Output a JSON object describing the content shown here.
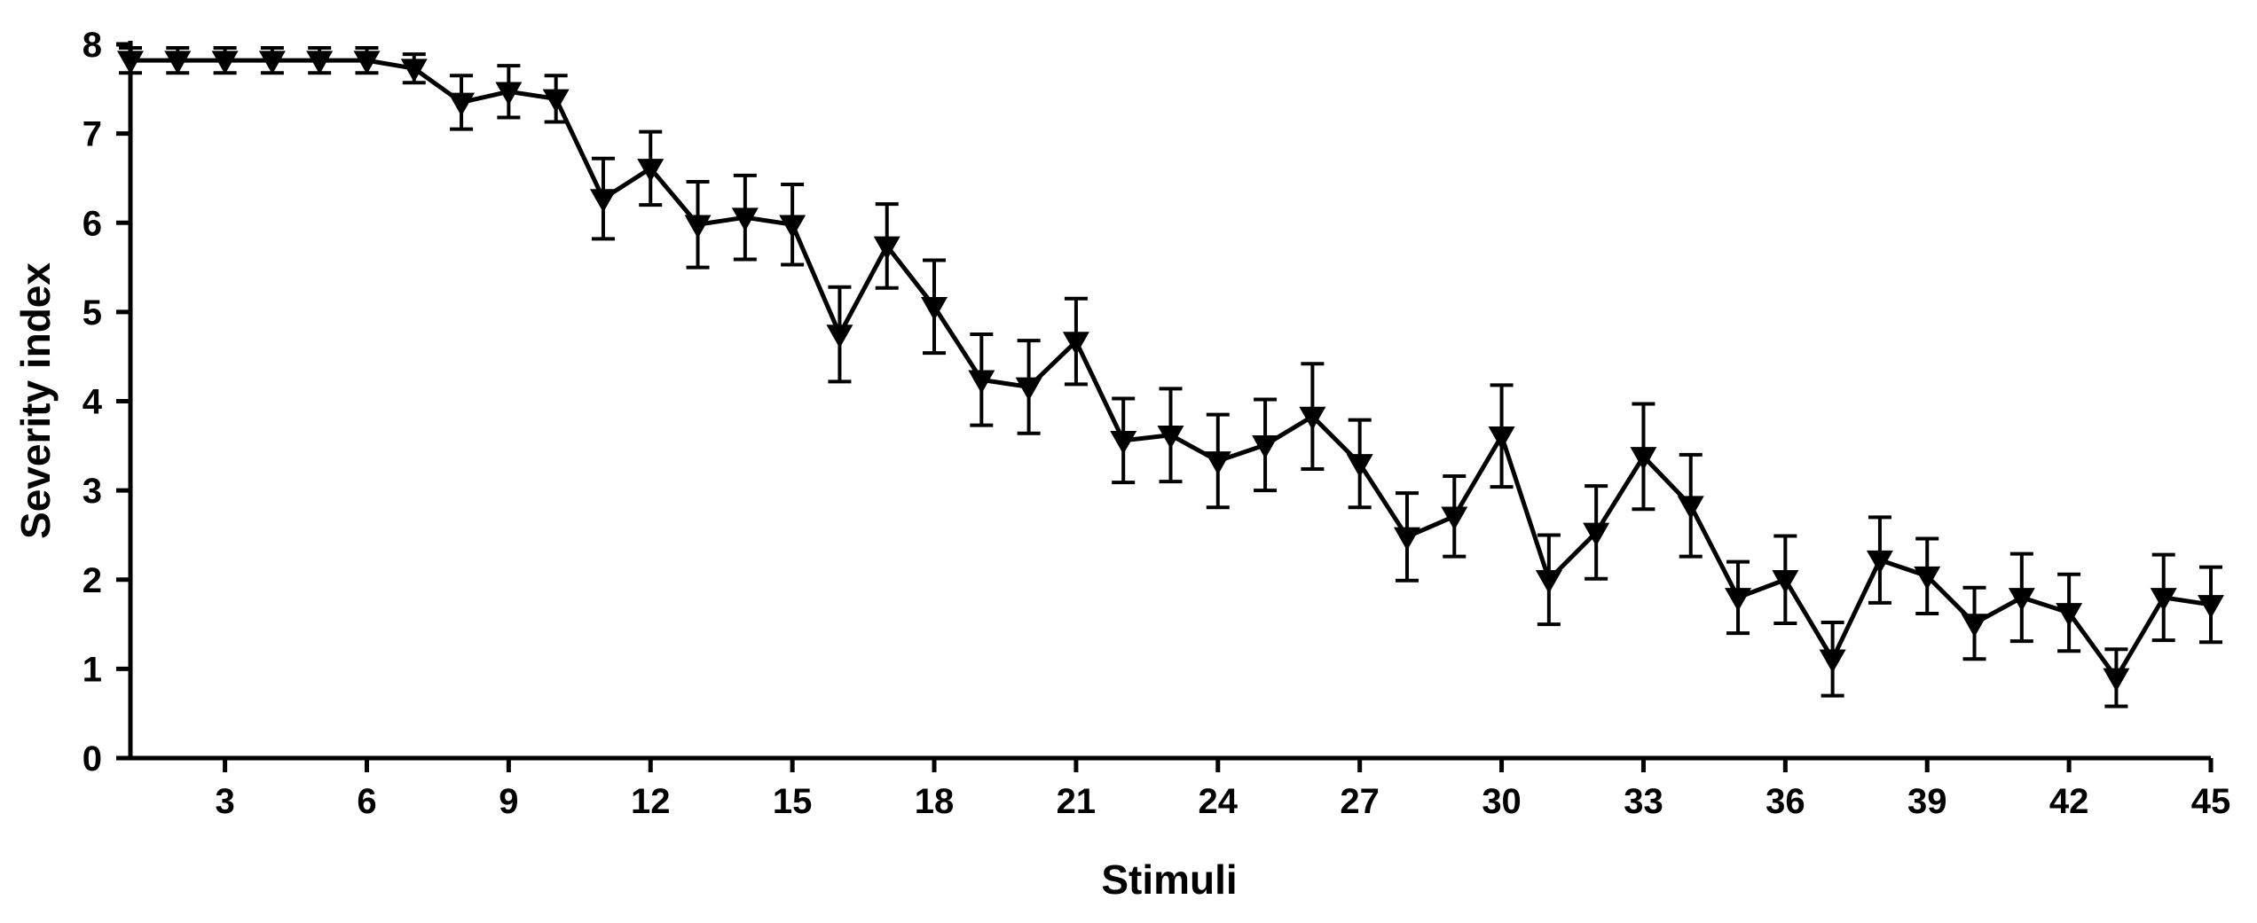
{
  "chart_data": {
    "type": "line",
    "title": "",
    "xlabel": "Stimuli",
    "ylabel": "Severity index",
    "xlim": [
      1,
      45
    ],
    "ylim": [
      0,
      8
    ],
    "x_ticks": [
      3,
      6,
      9,
      12,
      15,
      18,
      21,
      24,
      27,
      30,
      33,
      36,
      39,
      42,
      45
    ],
    "y_ticks": [
      0,
      1,
      2,
      3,
      4,
      5,
      6,
      7,
      8
    ],
    "grid": false,
    "legend": "none",
    "marker": "down-triangle",
    "line_color": "#000000",
    "series": [
      {
        "x": [
          1,
          2,
          3,
          4,
          5,
          6,
          7,
          8,
          9,
          10,
          11,
          12,
          13,
          14,
          15,
          16,
          17,
          18,
          19,
          20,
          21,
          22,
          23,
          24,
          25,
          26,
          27,
          28,
          29,
          30,
          31,
          32,
          33,
          34,
          35,
          36,
          37,
          38,
          39,
          40,
          41,
          42,
          43,
          44,
          45
        ],
        "values": [
          7.82,
          7.82,
          7.82,
          7.82,
          7.82,
          7.82,
          7.73,
          7.35,
          7.47,
          7.39,
          6.27,
          6.61,
          5.98,
          6.06,
          5.98,
          4.75,
          5.74,
          5.06,
          4.24,
          4.16,
          4.67,
          3.56,
          3.62,
          3.33,
          3.51,
          3.83,
          3.3,
          2.48,
          2.71,
          3.61,
          2.0,
          2.53,
          3.38,
          2.83,
          1.8,
          2.0,
          1.11,
          2.22,
          2.04,
          1.51,
          1.8,
          1.63,
          0.9,
          1.8,
          1.72
        ],
        "error": [
          0.14,
          0.14,
          0.14,
          0.14,
          0.14,
          0.14,
          0.16,
          0.3,
          0.29,
          0.26,
          0.45,
          0.41,
          0.48,
          0.47,
          0.45,
          0.53,
          0.47,
          0.52,
          0.51,
          0.52,
          0.48,
          0.47,
          0.52,
          0.52,
          0.51,
          0.59,
          0.49,
          0.49,
          0.45,
          0.57,
          0.5,
          0.52,
          0.59,
          0.57,
          0.4,
          0.49,
          0.41,
          0.48,
          0.42,
          0.4,
          0.49,
          0.43,
          0.32,
          0.48,
          0.42
        ]
      }
    ]
  }
}
